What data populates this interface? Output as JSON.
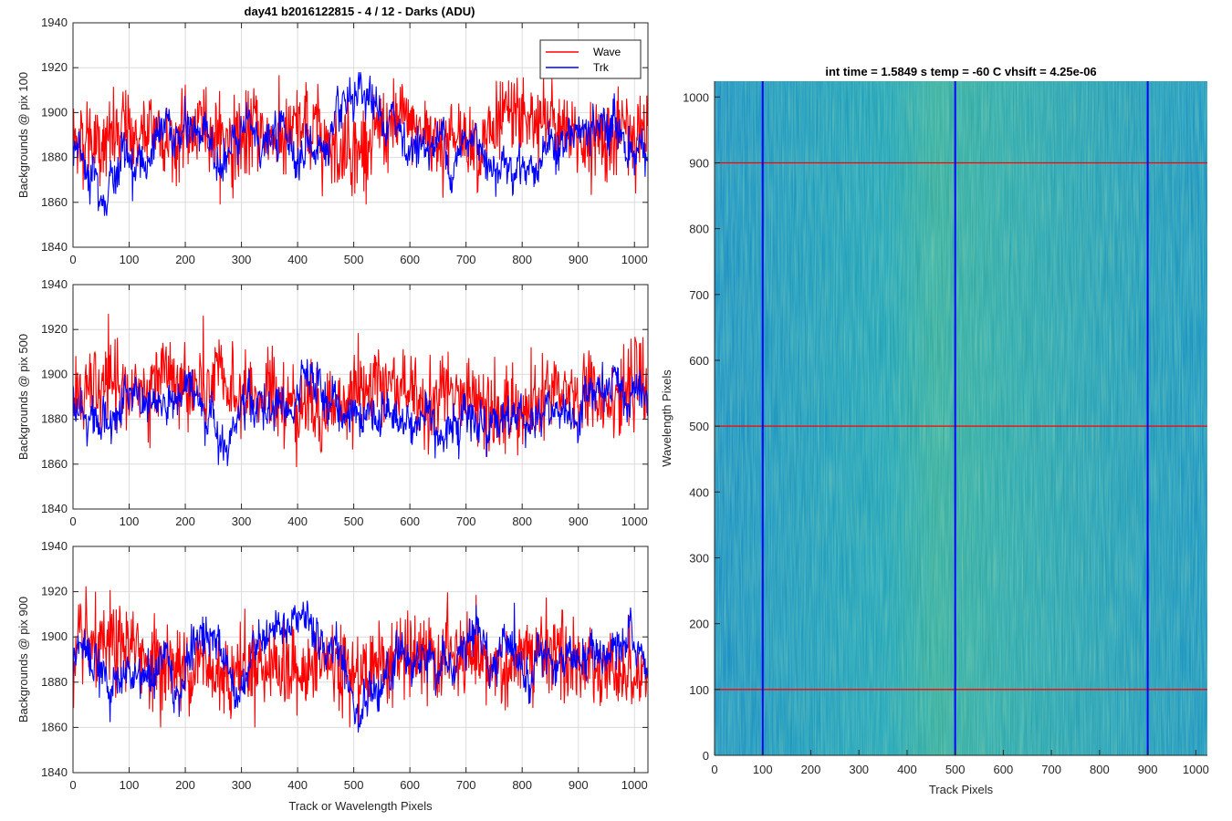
{
  "figure_title": "day41 b2016122815 - 4 / 12 - Darks (ADU)",
  "colors": {
    "wave": "#ff0000",
    "trk": "#0000ff",
    "grid": "#dcdcdc",
    "axis": "#262626"
  },
  "chart_data": [
    {
      "type": "line",
      "ylabel": "Backgrounds @ pix 100",
      "xlabel": "",
      "xlim": [
        0,
        1024
      ],
      "ylim": [
        1840,
        1940
      ],
      "xticks": [
        0,
        100,
        200,
        300,
        400,
        500,
        600,
        700,
        800,
        900,
        1000
      ],
      "yticks": [
        1840,
        1860,
        1880,
        1900,
        1920,
        1940
      ],
      "grid": true,
      "legend": "top-right",
      "series": [
        {
          "name": "Wave",
          "color": "#ff0000",
          "mean": 1890,
          "range": [
            1859,
            1929
          ]
        },
        {
          "name": "Trk",
          "color": "#0000ff",
          "mean": 1886,
          "range": [
            1854,
            1918
          ]
        }
      ]
    },
    {
      "type": "line",
      "ylabel": "Backgrounds @ pix 500",
      "xlabel": "",
      "xlim": [
        0,
        1024
      ],
      "ylim": [
        1840,
        1940
      ],
      "xticks": [
        0,
        100,
        200,
        300,
        400,
        500,
        600,
        700,
        800,
        900,
        1000
      ],
      "yticks": [
        1840,
        1860,
        1880,
        1900,
        1920,
        1940
      ],
      "grid": true,
      "series": [
        {
          "name": "Wave",
          "color": "#ff0000",
          "mean": 1890,
          "range": [
            1858,
            1927
          ]
        },
        {
          "name": "Trk",
          "color": "#0000ff",
          "mean": 1884,
          "range": [
            1845,
            1916
          ]
        }
      ]
    },
    {
      "type": "line",
      "ylabel": "Backgrounds @ pix 900",
      "xlabel": "Track or Wavelength Pixels",
      "xlim": [
        0,
        1024
      ],
      "ylim": [
        1840,
        1940
      ],
      "xticks": [
        0,
        100,
        200,
        300,
        400,
        500,
        600,
        700,
        800,
        900,
        1000
      ],
      "yticks": [
        1840,
        1860,
        1880,
        1900,
        1920,
        1940
      ],
      "grid": true,
      "series": [
        {
          "name": "Wave",
          "color": "#ff0000",
          "mean": 1889,
          "range": [
            1860,
            1927
          ]
        },
        {
          "name": "Trk",
          "color": "#0000ff",
          "mean": 1888,
          "range": [
            1857,
            1923
          ]
        }
      ]
    },
    {
      "type": "heatmap",
      "title": "int time = 1.5849 s    temp = -60 C    vhsift = 4.25e-06",
      "xlabel": "Track Pixels",
      "ylabel": "Wavelength Pixels",
      "xlim": [
        0,
        1024
      ],
      "ylim": [
        0,
        1024
      ],
      "xticks": [
        0,
        100,
        200,
        300,
        400,
        500,
        600,
        700,
        800,
        900,
        1000
      ],
      "yticks": [
        0,
        100,
        200,
        300,
        400,
        500,
        600,
        700,
        800,
        900,
        1000
      ],
      "vertical_lines": [
        100,
        500,
        900
      ],
      "horizontal_lines": [
        100,
        500,
        900
      ],
      "vertical_line_color": "#0000ff",
      "horizontal_line_color": "#ff0000",
      "colormap": "parula"
    }
  ]
}
